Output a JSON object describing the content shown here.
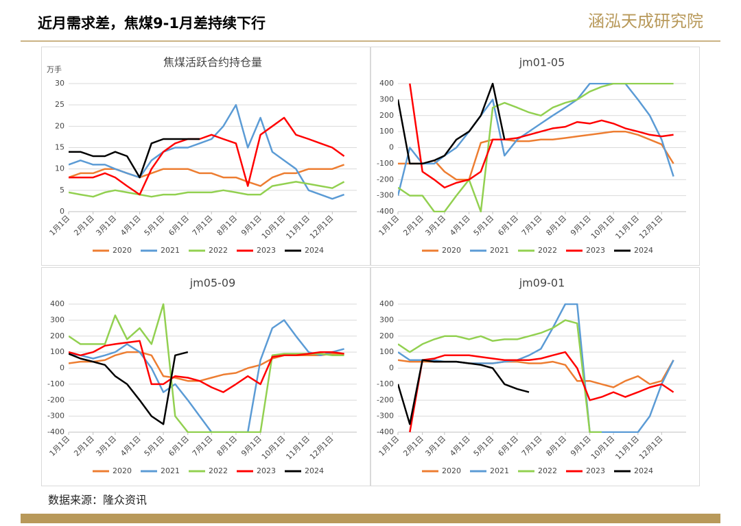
{
  "header": {
    "title": "近月需求差，焦煤9-1月差持续下行",
    "logo": "涵泓天成研究院"
  },
  "source": "数据来源：隆众资讯",
  "chart_data": [
    {
      "type": "line",
      "title": "焦煤活跃合约持仓量",
      "ylabel": "万手",
      "grid": true,
      "x": [
        1,
        16,
        32,
        47,
        60,
        75,
        91,
        106,
        121,
        136,
        152,
        167,
        182,
        197,
        213,
        228,
        244,
        259,
        274,
        289,
        305,
        320,
        335,
        350
      ],
      "xlim": [
        1,
        366
      ],
      "xticks": [
        {
          "value": 1,
          "label": "1月1日"
        },
        {
          "value": 32,
          "label": "2月1日"
        },
        {
          "value": 60,
          "label": "3月1日"
        },
        {
          "value": 91,
          "label": "4月1日"
        },
        {
          "value": 121,
          "label": "5月1日"
        },
        {
          "value": 152,
          "label": "6月1日"
        },
        {
          "value": 182,
          "label": "7月1日"
        },
        {
          "value": 213,
          "label": "8月1日"
        },
        {
          "value": 244,
          "label": "9月1日"
        },
        {
          "value": 274,
          "label": "10月1日"
        },
        {
          "value": 305,
          "label": "11月1日"
        },
        {
          "value": 335,
          "label": "12月1日"
        }
      ],
      "ylim": [
        0,
        30
      ],
      "yticks": [
        0,
        5,
        10,
        15,
        20,
        25,
        30
      ],
      "series": [
        {
          "name": "2020",
          "color": "#ed7d31",
          "values": [
            8,
            9,
            9,
            10,
            10,
            9,
            8,
            9,
            10,
            10,
            10,
            9,
            9,
            8,
            8,
            7,
            6,
            8,
            9,
            9,
            10,
            10,
            10,
            11
          ]
        },
        {
          "name": "2021",
          "color": "#5b9bd5",
          "values": [
            11,
            12,
            11,
            11,
            10,
            9,
            8,
            12,
            14,
            15,
            15,
            16,
            17,
            20,
            25,
            15,
            22,
            14,
            12,
            10,
            5,
            4,
            3,
            4
          ]
        },
        {
          "name": "2022",
          "color": "#92d050",
          "values": [
            4.5,
            4,
            3.5,
            4.5,
            5,
            4.5,
            4,
            3.5,
            4,
            4,
            4.5,
            4.5,
            4.5,
            5,
            4.5,
            4,
            4,
            6,
            6.5,
            7,
            6.5,
            6,
            5.5,
            7
          ]
        },
        {
          "name": "2023",
          "color": "#ff0000",
          "values": [
            8,
            8,
            8,
            9,
            8,
            6,
            4,
            10,
            14,
            16,
            17,
            17,
            18,
            17,
            16,
            6,
            18,
            20,
            22,
            18,
            17,
            16,
            15,
            13
          ]
        },
        {
          "name": "2024",
          "color": "#000000",
          "values": [
            14,
            14,
            13,
            13,
            14,
            13,
            8,
            16,
            17,
            17,
            17,
            17,
            null,
            null,
            null,
            null,
            null,
            null,
            null,
            null,
            null,
            null,
            null,
            null
          ]
        }
      ]
    },
    {
      "type": "line",
      "title": "jm01-05",
      "grid": true,
      "x": [
        1,
        16,
        32,
        47,
        60,
        75,
        91,
        106,
        121,
        136,
        152,
        167,
        182,
        197,
        213,
        228,
        244,
        259,
        274,
        289,
        305,
        320,
        335,
        350
      ],
      "xlim": [
        1,
        366
      ],
      "xticks": [
        {
          "value": 1,
          "label": "1月1日"
        },
        {
          "value": 32,
          "label": "2月1日"
        },
        {
          "value": 60,
          "label": "3月1日"
        },
        {
          "value": 91,
          "label": "4月1日"
        },
        {
          "value": 121,
          "label": "5月1日"
        },
        {
          "value": 152,
          "label": "6月1日"
        },
        {
          "value": 182,
          "label": "7月1日"
        },
        {
          "value": 213,
          "label": "8月1日"
        },
        {
          "value": 244,
          "label": "9月1日"
        },
        {
          "value": 274,
          "label": "10月1日"
        },
        {
          "value": 305,
          "label": "11月1日"
        },
        {
          "value": 335,
          "label": "12月1日"
        }
      ],
      "ylim": [
        -400,
        400
      ],
      "yticks": [
        -400,
        -300,
        -200,
        -100,
        0,
        100,
        200,
        300,
        400
      ],
      "series": [
        {
          "name": "2020",
          "color": "#ed7d31",
          "values": [
            -100,
            -100,
            -100,
            -80,
            -150,
            -200,
            -200,
            30,
            50,
            50,
            40,
            40,
            50,
            50,
            60,
            70,
            80,
            90,
            100,
            100,
            80,
            50,
            20,
            -100
          ]
        },
        {
          "name": "2021",
          "color": "#5b9bd5",
          "values": [
            -300,
            0,
            -100,
            -100,
            -50,
            0,
            100,
            200,
            300,
            -50,
            50,
            100,
            150,
            200,
            250,
            300,
            400,
            400,
            400,
            400,
            300,
            200,
            50,
            -180
          ]
        },
        {
          "name": "2022",
          "color": "#92d050",
          "values": [
            -250,
            -300,
            -300,
            -400,
            -400,
            -300,
            -200,
            -400,
            250,
            280,
            250,
            220,
            200,
            250,
            280,
            300,
            350,
            380,
            400,
            400,
            400,
            400,
            400,
            400
          ]
        },
        {
          "name": "2023",
          "color": "#ff0000",
          "values": [
            null,
            400,
            -150,
            -200,
            -250,
            -220,
            -200,
            -150,
            50,
            50,
            60,
            80,
            100,
            120,
            130,
            160,
            150,
            170,
            150,
            120,
            100,
            80,
            70,
            80
          ]
        },
        {
          "name": "2024",
          "color": "#000000",
          "values": [
            300,
            -100,
            -100,
            -80,
            -50,
            50,
            100,
            200,
            400,
            50,
            null,
            null,
            null,
            null,
            null,
            null,
            null,
            null,
            null,
            null,
            null,
            null,
            null,
            null
          ]
        }
      ]
    },
    {
      "type": "line",
      "title": "jm05-09",
      "grid": true,
      "x": [
        1,
        16,
        32,
        47,
        60,
        75,
        91,
        106,
        121,
        136,
        152,
        167,
        182,
        197,
        213,
        228,
        244,
        259,
        274,
        289,
        305,
        320,
        335,
        350
      ],
      "xlim": [
        1,
        366
      ],
      "xticks": [
        {
          "value": 1,
          "label": "1月1日"
        },
        {
          "value": 32,
          "label": "2月1日"
        },
        {
          "value": 60,
          "label": "3月1日"
        },
        {
          "value": 91,
          "label": "4月1日"
        },
        {
          "value": 121,
          "label": "5月1日"
        },
        {
          "value": 152,
          "label": "6月1日"
        },
        {
          "value": 182,
          "label": "7月1日"
        },
        {
          "value": 213,
          "label": "8月1日"
        },
        {
          "value": 244,
          "label": "9月1日"
        },
        {
          "value": 274,
          "label": "10月1日"
        },
        {
          "value": 305,
          "label": "11月1日"
        },
        {
          "value": 335,
          "label": "12月1日"
        }
      ],
      "ylim": [
        -400,
        400
      ],
      "yticks": [
        -400,
        -300,
        -200,
        -100,
        0,
        100,
        200,
        300,
        400
      ],
      "series": [
        {
          "name": "2020",
          "color": "#ed7d31",
          "values": [
            30,
            40,
            40,
            50,
            80,
            100,
            100,
            80,
            -50,
            -60,
            -80,
            -80,
            -60,
            -40,
            -30,
            0,
            20,
            60,
            80,
            80,
            80,
            80,
            90,
            90
          ]
        },
        {
          "name": "2021",
          "color": "#5b9bd5",
          "values": [
            90,
            80,
            60,
            80,
            100,
            150,
            100,
            0,
            -150,
            -100,
            -200,
            -300,
            -400,
            -400,
            -400,
            -400,
            50,
            250,
            300,
            200,
            100,
            80,
            100,
            120
          ]
        },
        {
          "name": "2022",
          "color": "#92d050",
          "values": [
            200,
            150,
            150,
            150,
            330,
            180,
            250,
            150,
            400,
            -300,
            -400,
            -400,
            -400,
            -400,
            -400,
            -400,
            -400,
            80,
            90,
            90,
            90,
            90,
            80,
            80
          ]
        },
        {
          "name": "2023",
          "color": "#ff0000",
          "values": [
            100,
            80,
            100,
            140,
            150,
            160,
            170,
            -100,
            -100,
            -50,
            -60,
            -80,
            -120,
            -150,
            -100,
            -50,
            -100,
            70,
            80,
            80,
            90,
            100,
            100,
            90
          ]
        },
        {
          "name": "2024",
          "color": "#000000",
          "values": [
            90,
            60,
            40,
            20,
            -50,
            -100,
            -200,
            -300,
            -350,
            80,
            100,
            null,
            null,
            null,
            null,
            null,
            null,
            null,
            null,
            null,
            null,
            null,
            null,
            null
          ]
        }
      ]
    },
    {
      "type": "line",
      "title": "jm09-01",
      "grid": true,
      "x": [
        1,
        16,
        32,
        47,
        60,
        75,
        91,
        106,
        121,
        136,
        152,
        167,
        182,
        197,
        213,
        228,
        244,
        259,
        274,
        289,
        305,
        320,
        335,
        350
      ],
      "xlim": [
        1,
        366
      ],
      "xticks": [
        {
          "value": 1,
          "label": "1月1日"
        },
        {
          "value": 32,
          "label": "2月1日"
        },
        {
          "value": 60,
          "label": "3月1日"
        },
        {
          "value": 91,
          "label": "4月1日"
        },
        {
          "value": 121,
          "label": "5月1日"
        },
        {
          "value": 152,
          "label": "6月1日"
        },
        {
          "value": 182,
          "label": "7月1日"
        },
        {
          "value": 213,
          "label": "8月1日"
        },
        {
          "value": 244,
          "label": "9月1日"
        },
        {
          "value": 274,
          "label": "10月1日"
        },
        {
          "value": 305,
          "label": "11月1日"
        },
        {
          "value": 335,
          "label": "12月1日"
        }
      ],
      "ylim": [
        -400,
        400
      ],
      "yticks": [
        -400,
        -300,
        -200,
        -100,
        0,
        100,
        200,
        300,
        400
      ],
      "series": [
        {
          "name": "2020",
          "color": "#ed7d31",
          "values": [
            50,
            40,
            40,
            40,
            40,
            40,
            30,
            30,
            30,
            40,
            40,
            30,
            30,
            40,
            20,
            -80,
            -80,
            -100,
            -120,
            -80,
            -50,
            -100,
            -80,
            50
          ]
        },
        {
          "name": "2021",
          "color": "#5b9bd5",
          "values": [
            100,
            50,
            50,
            50,
            40,
            40,
            30,
            30,
            30,
            40,
            50,
            80,
            120,
            250,
            400,
            400,
            -400,
            -400,
            -400,
            -400,
            -400,
            -300,
            -100,
            50
          ]
        },
        {
          "name": "2022",
          "color": "#92d050",
          "values": [
            150,
            100,
            150,
            180,
            200,
            200,
            180,
            200,
            170,
            180,
            180,
            200,
            220,
            250,
            300,
            280,
            -400,
            -400,
            null,
            null,
            null,
            null,
            null,
            null
          ]
        },
        {
          "name": "2023",
          "color": "#ff0000",
          "values": [
            null,
            -400,
            50,
            60,
            80,
            80,
            80,
            70,
            60,
            50,
            50,
            50,
            60,
            80,
            100,
            0,
            -200,
            -180,
            -150,
            -180,
            -150,
            -120,
            -100,
            -150
          ]
        },
        {
          "name": "2024",
          "color": "#000000",
          "values": [
            -100,
            -350,
            50,
            40,
            40,
            40,
            30,
            20,
            0,
            -100,
            -130,
            -150,
            null,
            null,
            null,
            null,
            null,
            null,
            null,
            null,
            null,
            null,
            null,
            null
          ]
        }
      ]
    }
  ]
}
